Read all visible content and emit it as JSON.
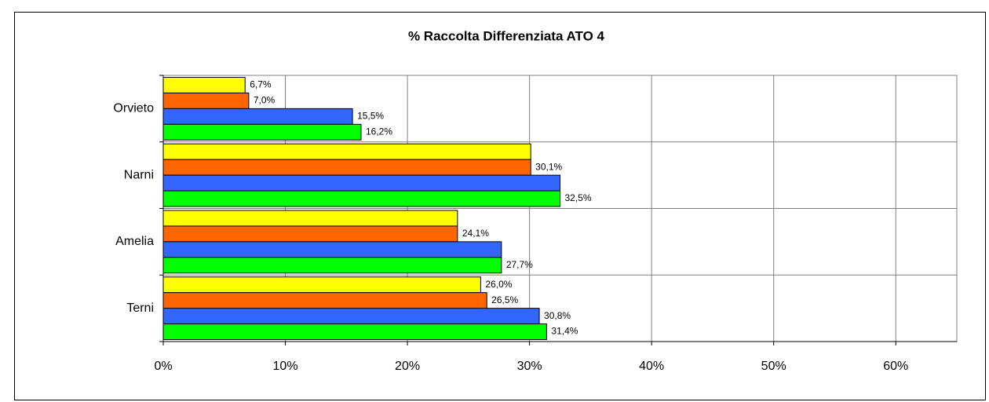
{
  "chart_data": {
    "type": "bar",
    "orientation": "horizontal",
    "title": "% Raccolta Differenziata ATO 4",
    "categories": [
      "Orvieto",
      "Narni",
      "Amelia",
      "Terni"
    ],
    "series": [
      {
        "color": "#ffff00",
        "values": [
          6.7,
          30.1,
          24.1,
          26.0
        ],
        "value_labels": [
          "6,7%",
          null,
          null,
          "26,0%"
        ]
      },
      {
        "color": "#ff6600",
        "values": [
          7.0,
          30.1,
          24.1,
          26.5
        ],
        "value_labels": [
          "7,0%",
          "30,1%",
          "24,1%",
          "26,5%"
        ]
      },
      {
        "color": "#3366ff",
        "values": [
          15.5,
          32.5,
          27.7,
          30.8
        ],
        "value_labels": [
          "15,5%",
          null,
          null,
          "30,8%"
        ]
      },
      {
        "color": "#00ff00",
        "values": [
          16.2,
          32.5,
          27.7,
          31.4
        ],
        "value_labels": [
          "16,2%",
          "32,5%",
          "27,7%",
          "31,4%"
        ]
      }
    ],
    "xlim": [
      0,
      65
    ],
    "xticks": [
      {
        "value": 0,
        "label": "0%"
      },
      {
        "value": 10,
        "label": "10%"
      },
      {
        "value": 20,
        "label": "20%"
      },
      {
        "value": 30,
        "label": "30%"
      },
      {
        "value": 40,
        "label": "40%"
      },
      {
        "value": 50,
        "label": "50%"
      },
      {
        "value": 60,
        "label": "60%"
      }
    ],
    "grid": true
  }
}
